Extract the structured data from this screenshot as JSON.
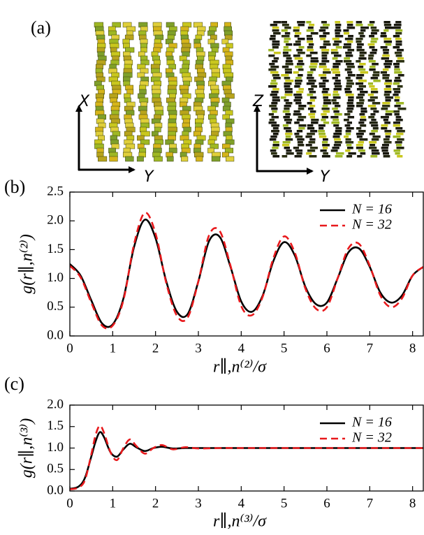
{
  "panel_a": {
    "label": "(a)",
    "left_axes": {
      "vertical": "X",
      "horizontal": "Y"
    },
    "right_axes": {
      "vertical": "Z",
      "horizontal": "Y"
    }
  },
  "chart_data": [
    {
      "type": "line",
      "panel_label": "(b)",
      "xlabel": "r∥,n⁽²⁾/σ",
      "ylabel": "g(r∥,n⁽²⁾)",
      "legend": "upper right",
      "x": [
        0,
        0.25,
        0.5,
        0.75,
        1.0,
        1.25,
        1.5,
        1.75,
        2.0,
        2.25,
        2.5,
        2.75,
        3.0,
        3.25,
        3.5,
        3.75,
        4.0,
        4.25,
        4.5,
        4.75,
        5.0,
        5.25,
        5.5,
        5.75,
        6.0,
        6.25,
        6.5,
        6.75,
        7.0,
        7.25,
        7.5,
        7.75,
        8.0,
        8.25
      ],
      "series": [
        {
          "name": "N = 16",
          "color": "#000000",
          "linestyle": "solid",
          "values": [
            1.25,
            1.05,
            0.62,
            0.22,
            0.2,
            0.65,
            1.55,
            2.02,
            1.7,
            0.95,
            0.42,
            0.38,
            0.95,
            1.65,
            1.72,
            1.2,
            0.6,
            0.42,
            0.7,
            1.3,
            1.63,
            1.4,
            0.85,
            0.55,
            0.58,
            1.0,
            1.45,
            1.52,
            1.2,
            0.75,
            0.58,
            0.7,
            1.05,
            1.2
          ]
        },
        {
          "name": "N = 32",
          "color": "#e8191c",
          "linestyle": "dashed",
          "values": [
            1.22,
            1.02,
            0.58,
            0.18,
            0.18,
            0.62,
            1.6,
            2.14,
            1.78,
            0.92,
            0.35,
            0.32,
            0.95,
            1.75,
            1.82,
            1.22,
            0.52,
            0.36,
            0.68,
            1.35,
            1.73,
            1.45,
            0.82,
            0.47,
            0.5,
            1.0,
            1.52,
            1.6,
            1.22,
            0.7,
            0.5,
            0.65,
            1.05,
            1.2
          ]
        }
      ],
      "xlim": [
        0,
        8.25
      ],
      "xticks": [
        0,
        1,
        2,
        3,
        4,
        5,
        6,
        7,
        8
      ],
      "ylim": [
        0,
        2.5
      ],
      "yticks": [
        {
          "value": 0,
          "label": "0.0"
        },
        0.5,
        {
          "value": 1,
          "label": "1.0"
        },
        1.5,
        {
          "value": 2,
          "label": "2.0"
        },
        2.5
      ]
    },
    {
      "type": "line",
      "panel_label": "(c)",
      "xlabel": "r∥,n⁽³⁾/σ",
      "ylabel": "g(r∥,n⁽³⁾)",
      "legend": "upper right",
      "x": [
        0,
        0.2,
        0.35,
        0.5,
        0.6,
        0.7,
        0.8,
        0.95,
        1.1,
        1.25,
        1.4,
        1.55,
        1.75,
        1.95,
        2.15,
        2.4,
        2.7,
        3.0,
        3.5,
        4,
        5,
        6,
        7,
        8,
        8.25
      ],
      "series": [
        {
          "name": "N = 16",
          "color": "#000000",
          "linestyle": "solid",
          "values": [
            0.05,
            0.1,
            0.3,
            0.8,
            1.15,
            1.37,
            1.25,
            0.9,
            0.8,
            0.97,
            1.1,
            1.02,
            0.93,
            1.0,
            1.03,
            0.99,
            1.0,
            1.0,
            1.0,
            1.0,
            1.0,
            1.0,
            1.0,
            1.0,
            1.0
          ]
        },
        {
          "name": "N = 32",
          "color": "#e8191c",
          "linestyle": "dashed",
          "values": [
            0.04,
            0.08,
            0.25,
            0.85,
            1.3,
            1.52,
            1.35,
            0.9,
            0.72,
            1.0,
            1.2,
            1.05,
            0.87,
            1.0,
            1.07,
            0.97,
            1.02,
            0.99,
            1.0,
            1.0,
            1.0,
            1.0,
            1.0,
            1.0,
            1.0
          ]
        }
      ],
      "xlim": [
        0,
        8.25
      ],
      "xticks": [
        0,
        1,
        2,
        3,
        4,
        5,
        6,
        7,
        8
      ],
      "ylim": [
        0,
        2
      ],
      "yticks": [
        {
          "value": 0,
          "label": "0.0"
        },
        0.5,
        {
          "value": 1,
          "label": "1.0"
        },
        1.5,
        {
          "value": 2,
          "label": "2.0"
        }
      ]
    }
  ]
}
